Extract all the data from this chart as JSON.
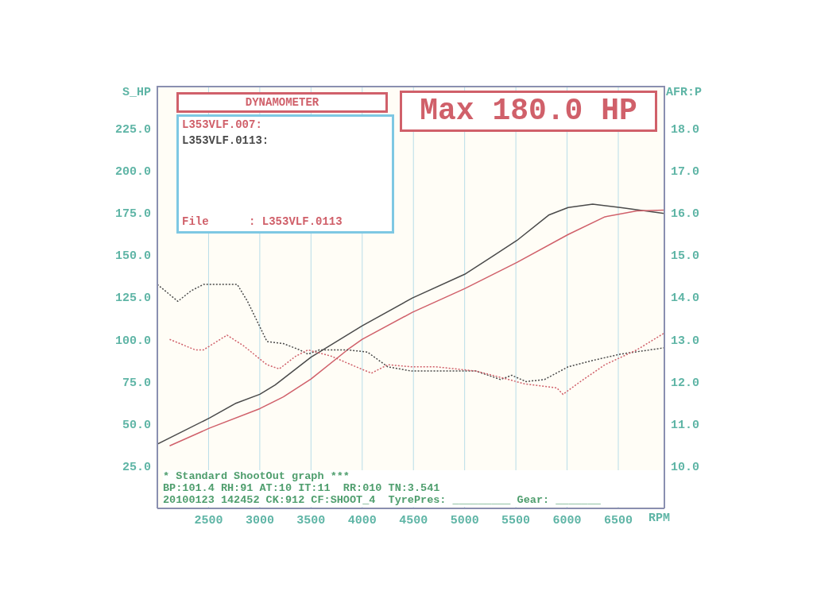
{
  "chart_data": {
    "type": "line",
    "title": "DYNAMOMETER",
    "ylabel": "S_HP",
    "y2label": "AFR:P",
    "xlabel": "RPM",
    "annotations": [
      "Max 180.0 HP",
      "L353VLF.007:",
      "L353VLF.0113:",
      "File      : L353VLF.0113",
      "* Standard ShootOut graph ***",
      "BP:101.4 RH:91 AT:10 IT:11  RR:010 TN:3.541",
      "20100123 142452 CK:912 CF:SHOOT_4  TyrePres: _________ Gear: _______"
    ],
    "xlim": [
      2000,
      6950
    ],
    "xticks": [
      2500,
      3000,
      3500,
      4000,
      4500,
      5000,
      5500,
      6000,
      6500
    ],
    "ylim": [
      0,
      250
    ],
    "yticks": [
      {
        "value": 25,
        "label": "25.0"
      },
      {
        "value": 50,
        "label": "50.0"
      },
      {
        "value": 75,
        "label": "75.0"
      },
      {
        "value": 100,
        "label": "100.0"
      },
      {
        "value": 125,
        "label": "125.0"
      },
      {
        "value": 150,
        "label": "150.0"
      },
      {
        "value": 175,
        "label": "175.0"
      },
      {
        "value": 200,
        "label": "200.0"
      },
      {
        "value": 225,
        "label": "225.0"
      }
    ],
    "y2lim": [
      9,
      19
    ],
    "y2ticks": [
      {
        "value": 10,
        "label": "10.0"
      },
      {
        "value": 11,
        "label": "11.0"
      },
      {
        "value": 12,
        "label": "12.0"
      },
      {
        "value": 13,
        "label": "13.0"
      },
      {
        "value": 14,
        "label": "14.0"
      },
      {
        "value": 15,
        "label": "15.0"
      },
      {
        "value": 16,
        "label": "16.0"
      },
      {
        "value": 17,
        "label": "17.0"
      },
      {
        "value": 18,
        "label": "18.0"
      }
    ],
    "grid": true,
    "legend": false,
    "marker": "none",
    "line_style": "solid",
    "series": [
      {
        "color": "#4a4a4a",
        "x": [
          2000,
          2510,
          2760,
          3000,
          3150,
          3500,
          4000,
          4490,
          5000,
          5270,
          5510,
          5820,
          6010,
          6250,
          6520,
          6950
        ],
        "values": [
          38,
          53.5,
          62,
          67.5,
          73,
          89.5,
          108,
          124.5,
          138.5,
          149,
          158.5,
          173.5,
          178,
          180,
          178,
          174.5
        ]
      },
      {
        "color": "#d0606a",
        "x": [
          2120,
          2510,
          3000,
          3230,
          3500,
          3860,
          4000,
          4490,
          5000,
          5510,
          6010,
          6370,
          6680,
          6950
        ],
        "values": [
          37,
          47.5,
          59,
          66,
          76.5,
          94,
          100,
          116,
          130,
          145.5,
          162,
          172.5,
          176,
          176.5
        ]
      },
      {
        "color": "#4a4a4a",
        "axis": "y2",
        "line_style": "dotted",
        "x": [
          2000,
          2200,
          2330,
          2450,
          2780,
          2880,
          3070,
          3230,
          3390,
          3470,
          3580,
          3860,
          4050,
          4250,
          4480,
          4720,
          5110,
          5350,
          5460,
          5600,
          5780,
          6010,
          6250,
          6520,
          6950
        ],
        "values": [
          14.3,
          13.9,
          14.15,
          14.3,
          14.3,
          13.9,
          12.95,
          12.9,
          12.75,
          12.65,
          12.75,
          12.75,
          12.7,
          12.35,
          12.25,
          12.25,
          12.25,
          12.05,
          12.15,
          12.0,
          12.05,
          12.35,
          12.5,
          12.65,
          12.8
        ]
      },
      {
        "color": "#d0606a",
        "axis": "y2",
        "line_style": "dotted",
        "x": [
          2120,
          2370,
          2450,
          2680,
          2840,
          3070,
          3190,
          3350,
          3470,
          3700,
          3940,
          4090,
          4250,
          4480,
          4720,
          5110,
          5430,
          5580,
          5900,
          5960,
          6130,
          6370,
          6680,
          6950
        ],
        "values": [
          13.0,
          12.75,
          12.75,
          13.1,
          12.85,
          12.4,
          12.3,
          12.6,
          12.75,
          12.6,
          12.35,
          12.2,
          12.4,
          12.35,
          12.35,
          12.25,
          12.05,
          11.95,
          11.85,
          11.7,
          12.0,
          12.4,
          12.75,
          13.15
        ]
      }
    ]
  }
}
